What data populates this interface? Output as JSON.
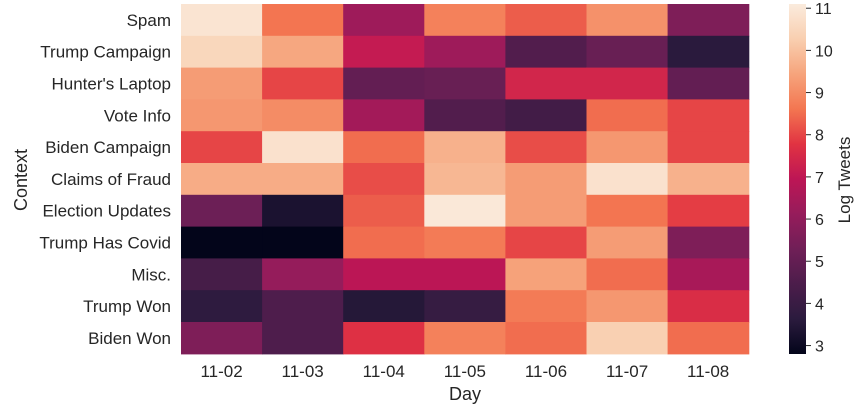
{
  "chart_data": {
    "type": "heatmap",
    "xlabel": "Day",
    "ylabel": "Context",
    "colorbar_label": "Log Tweets",
    "x": [
      "11-02",
      "11-03",
      "11-04",
      "11-05",
      "11-06",
      "11-07",
      "11-08"
    ],
    "y": [
      "Spam",
      "Trump Campaign",
      "Hunter's Laptop",
      "Vote Info",
      "Biden Campaign",
      "Claims of Fraud",
      "Election Updates",
      "Trump Has Covid",
      "Misc.",
      "Trump Won",
      "Biden Won"
    ],
    "values": [
      [
        10.9,
        8.6,
        6.3,
        8.8,
        8.3,
        9.1,
        5.6
      ],
      [
        10.5,
        9.5,
        7.1,
        6.3,
        4.6,
        5.1,
        3.6
      ],
      [
        9.3,
        8.0,
        5.0,
        5.1,
        7.4,
        7.4,
        5.0
      ],
      [
        9.2,
        9.0,
        6.4,
        4.6,
        4.2,
        8.5,
        8.0
      ],
      [
        8.0,
        10.8,
        8.5,
        9.7,
        8.1,
        9.2,
        8.0
      ],
      [
        9.6,
        9.6,
        8.1,
        9.8,
        9.3,
        10.8,
        9.7
      ],
      [
        5.2,
        3.3,
        8.3,
        11.0,
        9.3,
        8.6,
        7.9
      ],
      [
        2.8,
        2.8,
        8.5,
        8.7,
        8.0,
        9.3,
        5.6
      ],
      [
        4.3,
        6.1,
        6.9,
        6.9,
        9.4,
        8.5,
        6.5
      ],
      [
        3.7,
        4.5,
        3.5,
        3.9,
        8.7,
        9.2,
        7.6
      ],
      [
        5.6,
        4.5,
        7.7,
        8.8,
        8.5,
        10.3,
        8.5
      ]
    ],
    "colorbar_ticks": [
      "3",
      "4",
      "5",
      "6",
      "7",
      "8",
      "9",
      "10",
      "11"
    ],
    "vmin": 2.8,
    "vmax": 11.1,
    "colormap": "rocket",
    "colormap_stops": [
      "#03051a",
      "#2b1b3e",
      "#4c1d4b",
      "#701f57",
      "#961c5b",
      "#bd1655",
      "#e13342",
      "#f37651",
      "#f6a47c",
      "#f9cfb0",
      "#faebdd"
    ]
  }
}
